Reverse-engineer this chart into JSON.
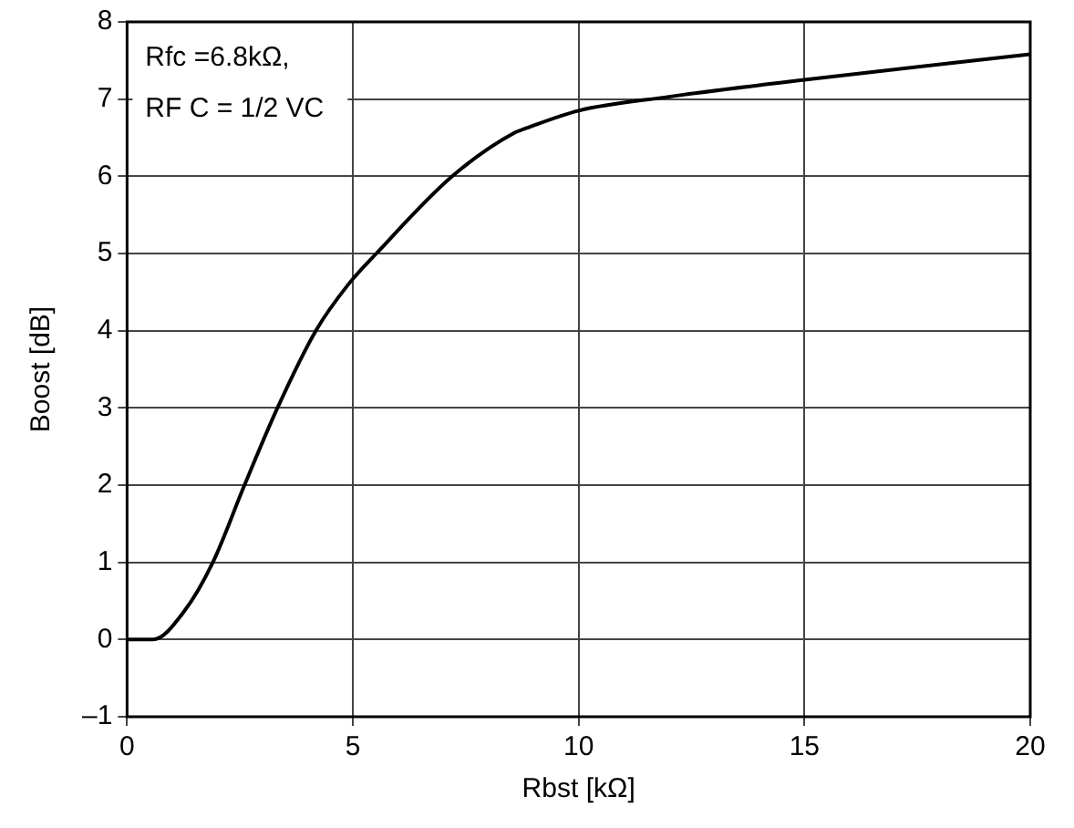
{
  "chart_data": {
    "type": "line",
    "xlabel": "Rbst [kΩ]",
    "ylabel": "Boost [dB]",
    "annotations": [
      "Rfc =6.8kΩ,",
      "RF C = 1/2 VC"
    ],
    "x": [
      0,
      0.57,
      1.27,
      1.9,
      2.6,
      3.33,
      4.18,
      4.9,
      5.52,
      7.2,
      8.6,
      8.78,
      10,
      12,
      15,
      20
    ],
    "series": [
      {
        "color": "#000000",
        "values": [
          0,
          0,
          0.37,
          1.0,
          2.0,
          3.0,
          4.0,
          4.6,
          5.0,
          6.0,
          6.57,
          6.61,
          6.85,
          7.03,
          7.25,
          7.58
        ]
      }
    ],
    "xlim": [
      0,
      20
    ],
    "xticks": [
      0,
      5,
      10,
      15,
      20
    ],
    "ylim": [
      -1,
      8
    ],
    "yticks": [
      {
        "value": -1,
        "label": "–1"
      },
      0,
      1,
      2,
      3,
      4,
      5,
      6,
      7,
      8
    ],
    "grid": true,
    "legend": false,
    "marker": "none",
    "line_style": "solid"
  }
}
